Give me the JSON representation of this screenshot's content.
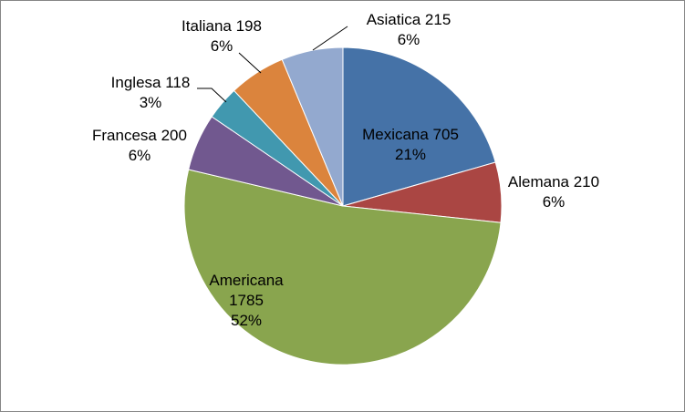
{
  "chart_data": {
    "type": "pie",
    "title": "",
    "slices": [
      {
        "name": "Mexicana",
        "value": 705,
        "pct": "21%",
        "color": "#4572A7",
        "label_lines": [
          "Mexicana 705",
          "21%"
        ]
      },
      {
        "name": "Alemana",
        "value": 210,
        "pct": "6%",
        "color": "#AA4643",
        "label_lines": [
          "Alemana 210",
          "6%"
        ]
      },
      {
        "name": "Americana",
        "value": 1785,
        "pct": "52%",
        "color": "#89A54E",
        "label_lines": [
          "Americana",
          "1785",
          "52%"
        ]
      },
      {
        "name": "Francesa",
        "value": 200,
        "pct": "6%",
        "color": "#71588F",
        "label_lines": [
          "Francesa 200",
          "6%"
        ]
      },
      {
        "name": "Inglesa",
        "value": 118,
        "pct": "3%",
        "color": "#4198AF",
        "label_lines": [
          "Inglesa 118",
          "3%"
        ]
      },
      {
        "name": "Italiana",
        "value": 198,
        "pct": "6%",
        "color": "#DB843D",
        "label_lines": [
          "Italiana 198",
          "6%"
        ]
      },
      {
        "name": "Asiatica",
        "value": 215,
        "pct": "6%",
        "color": "#93A9CF",
        "label_lines": [
          "Asiatica 215",
          "6%"
        ]
      }
    ],
    "start_angle_deg": 0,
    "direction": "clockwise",
    "legend": "none",
    "data_labels": "category name, value, percentage"
  }
}
